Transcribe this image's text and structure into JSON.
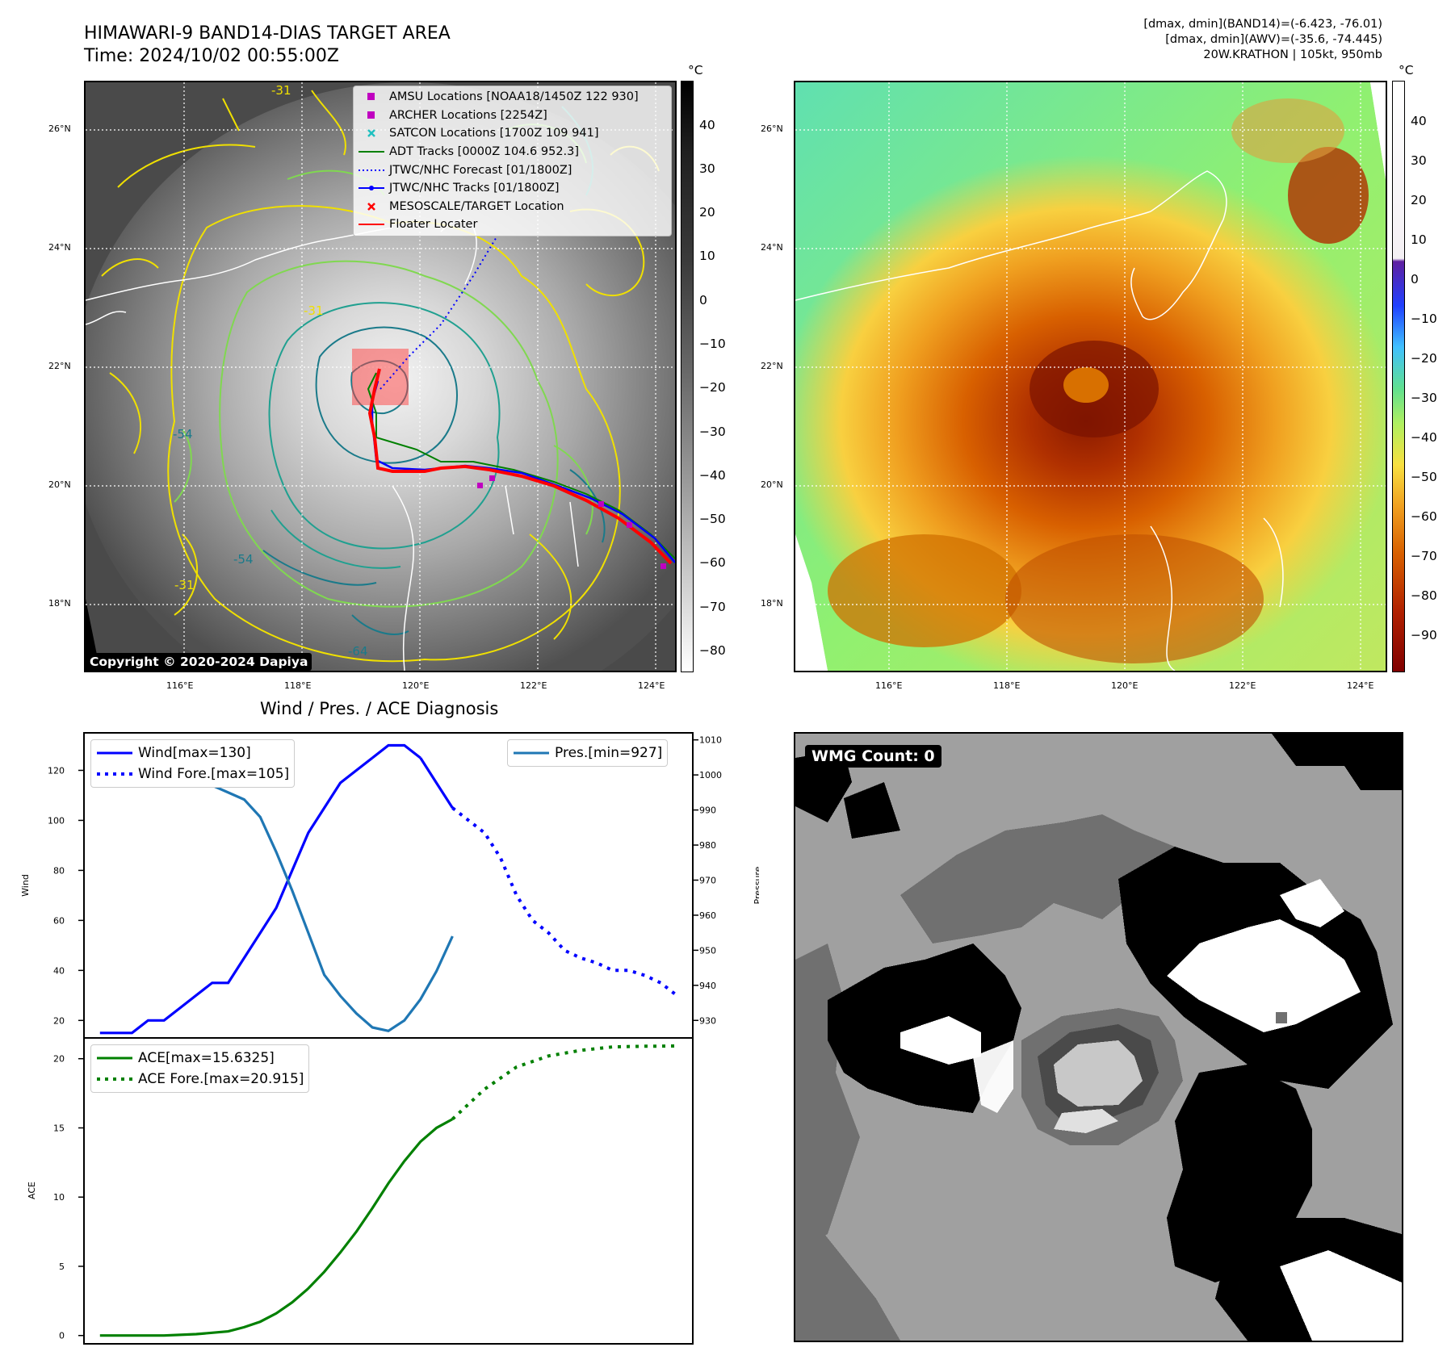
{
  "header": {
    "title_line1": "HIMAWARI-9 BAND14-DIAS TARGET AREA",
    "title_line2": "Time: 2024/10/02 00:55:00Z",
    "right_line1": "[dmax, dmin](BAND14)=(-6.423, -76.01)",
    "right_line2": "[dmax, dmin](AWV)=(-35.6, -74.445)",
    "right_line3": "20W.KRATHON | 105kt, 950mb"
  },
  "map": {
    "lat_labels": [
      "26°N",
      "24°N",
      "22°N",
      "20°N",
      "18°N"
    ],
    "lon_labels": [
      "116°E",
      "118°E",
      "120°E",
      "122°E",
      "124°E"
    ],
    "copyright": "Copyright © 2020-2024 Dapiya",
    "contour_labels": [
      "-54",
      "-54",
      "-31",
      "-64",
      "-31",
      "-31"
    ],
    "legend": [
      {
        "label": "AMSU Locations [NOAA18/1450Z 122 930]",
        "symbol": "square",
        "color": "#c000c0"
      },
      {
        "label": "ARCHER Locations [2254Z]",
        "symbol": "square",
        "color": "#c000c0"
      },
      {
        "label": "SATCON Locations [1700Z 109 941]",
        "symbol": "x",
        "color": "#20c0c0"
      },
      {
        "label": "ADT Tracks [0000Z 104.6 952.3]",
        "symbol": "line",
        "color": "#008000"
      },
      {
        "label": "JTWC/NHC Forecast [01/1800Z]",
        "symbol": "dotted",
        "color": "#0000ff"
      },
      {
        "label": "JTWC/NHC Tracks [01/1800Z]",
        "symbol": "line-dot",
        "color": "#0000ff"
      },
      {
        "label": "MESOSCALE/TARGET Location",
        "symbol": "x",
        "color": "#ff0000"
      },
      {
        "label": "Floater Locater",
        "symbol": "line",
        "color": "#ff0000"
      }
    ]
  },
  "colorbars": {
    "unit": "°C",
    "left_ticks": [
      "40",
      "30",
      "20",
      "10",
      "0",
      "−10",
      "−20",
      "−30",
      "−40",
      "−50",
      "−60",
      "−70",
      "−80"
    ],
    "right_ticks": [
      "40",
      "30",
      "20",
      "10",
      "0",
      "−10",
      "−20",
      "−30",
      "−40",
      "−50",
      "−60",
      "−70",
      "−80",
      "−90"
    ]
  },
  "diagnosis": {
    "title": "Wind / Pres. / ACE Diagnosis",
    "wind_ylabel": "Wind",
    "pres_ylabel": "Pressure",
    "ace_ylabel": "ACE",
    "wind_ticks": [
      "120",
      "100",
      "80",
      "60",
      "40",
      "20"
    ],
    "pres_ticks": [
      "1010",
      "1000",
      "990",
      "980",
      "970",
      "960",
      "950",
      "940",
      "930"
    ],
    "ace_ticks": [
      "20",
      "15",
      "10",
      "5",
      "0"
    ],
    "legend_wind": "Wind[max=130]",
    "legend_wind_fore": "Wind Fore.[max=105]",
    "legend_pres": "Pres.[min=927]",
    "legend_ace": "ACE[max=15.6325]",
    "legend_ace_fore": "ACE Fore.[max=20.915]"
  },
  "wmg_label": "WMG Count: 0",
  "chart_data": [
    {
      "type": "line",
      "title": "Wind / Pres. / ACE Diagnosis",
      "ylabel": "Wind",
      "ylim": [
        13,
        135
      ],
      "series": [
        {
          "name": "Wind[max=130]",
          "x": [
            0,
            1,
            2,
            3,
            4,
            5,
            6,
            7,
            8,
            9,
            10,
            11,
            12,
            13,
            14,
            15,
            16,
            17
          ],
          "values": [
            15,
            15,
            15,
            20,
            20,
            25,
            30,
            35,
            35,
            45,
            55,
            65,
            80,
            95,
            105,
            115,
            120,
            125
          ]
        },
        {
          "name": "Wind[max=130]",
          "x": [
            17,
            18,
            19,
            20
          ],
          "values": [
            125,
            130,
            130,
            125
          ]
        },
        {
          "name": "Wind[max=130]",
          "x": [
            20,
            21,
            22
          ],
          "values": [
            125,
            115,
            105
          ]
        },
        {
          "name": "Wind Fore.[max=105]",
          "x": [
            22,
            23,
            24,
            25,
            26,
            27,
            28,
            29,
            30,
            31,
            32,
            33,
            34,
            35,
            36
          ],
          "values": [
            105,
            100,
            95,
            85,
            70,
            60,
            55,
            48,
            45,
            43,
            40,
            40,
            38,
            35,
            30
          ]
        }
      ]
    },
    {
      "type": "line",
      "ylabel": "Pressure",
      "ylim": [
        925,
        1012
      ],
      "series": [
        {
          "name": "Pres.[min=927]",
          "x": [
            0,
            1,
            2,
            3,
            4,
            5,
            6,
            7,
            8,
            9,
            10,
            11,
            12,
            13,
            14,
            15,
            16,
            17,
            18,
            19,
            20,
            21,
            22
          ],
          "values": [
            1008,
            1008,
            1005,
            1003,
            1002,
            1000,
            998,
            997,
            995,
            993,
            988,
            978,
            967,
            955,
            943,
            937,
            932,
            928,
            927,
            930,
            936,
            944,
            954
          ]
        }
      ]
    },
    {
      "type": "line",
      "ylabel": "ACE",
      "ylim": [
        -0.6,
        21.5
      ],
      "series": [
        {
          "name": "ACE[max=15.6325]",
          "x": [
            0,
            2,
            4,
            6,
            8,
            9,
            10,
            11,
            12,
            13,
            14,
            15,
            16,
            17,
            18,
            19,
            20,
            21,
            22
          ],
          "values": [
            0,
            0,
            0,
            0.1,
            0.3,
            0.6,
            1.0,
            1.6,
            2.4,
            3.4,
            4.6,
            6.0,
            7.5,
            9.2,
            11.0,
            12.6,
            14.0,
            15.0,
            15.6325
          ]
        },
        {
          "name": "ACE Fore.[max=20.915]",
          "x": [
            22,
            24,
            26,
            28,
            30,
            32,
            34,
            36
          ],
          "values": [
            15.6325,
            17.8,
            19.4,
            20.2,
            20.6,
            20.85,
            20.9,
            20.915
          ]
        }
      ]
    }
  ]
}
